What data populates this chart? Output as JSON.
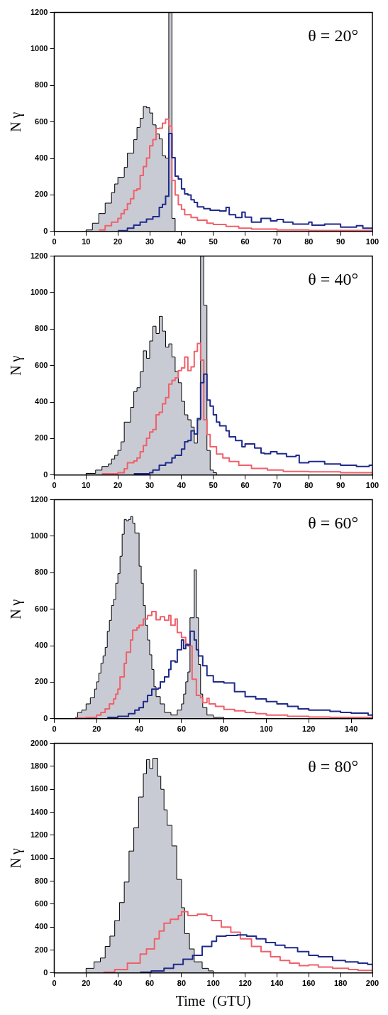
{
  "chart_data": [
    {
      "type": "step",
      "ylabel": "N γ",
      "annotations": [
        "θ = 20°"
      ],
      "xlim": [
        0,
        100
      ],
      "xticks": [
        0,
        10,
        20,
        30,
        40,
        50,
        60,
        70,
        80,
        90,
        100
      ],
      "ylim": [
        0,
        1200
      ],
      "yticks": [
        0,
        200,
        400,
        600,
        800,
        1000,
        1200
      ],
      "series": [
        {
          "type": "area",
          "color": "#c8cbd3",
          "x": [
            0,
            10,
            12,
            14,
            16,
            18,
            19,
            20,
            22,
            23,
            25,
            26,
            27,
            28,
            29,
            30,
            31,
            32,
            33,
            34,
            35,
            36,
            37,
            38,
            100
          ],
          "values": [
            0,
            8,
            45,
            98,
            155,
            213,
            260,
            297,
            351,
            429,
            503,
            570,
            620,
            685,
            678,
            649,
            584,
            534,
            507,
            415,
            402,
            1200,
            71,
            0,
            0
          ]
        },
        {
          "type": "step",
          "color": "#f0606a",
          "x": [
            14,
            16,
            18,
            20,
            21,
            22,
            23,
            24,
            25,
            26,
            27,
            28,
            29,
            30,
            31,
            32,
            33,
            34,
            35,
            36,
            37,
            38,
            39,
            40,
            41,
            43,
            45,
            48,
            50,
            54,
            58,
            62,
            70,
            80,
            100
          ],
          "values": [
            8,
            31,
            51,
            71,
            98,
            119,
            152,
            179,
            224,
            233,
            307,
            355,
            402,
            469,
            503,
            564,
            566,
            593,
            615,
            577,
            280,
            200,
            146,
            121,
            92,
            76,
            62,
            45,
            38,
            27,
            18,
            13,
            8,
            5,
            3
          ]
        },
        {
          "type": "step",
          "color": "#1f2a8a",
          "x": [
            20,
            23,
            25,
            27,
            29,
            31,
            33,
            34,
            35,
            36,
            37,
            38,
            39,
            40,
            41,
            42,
            43,
            44,
            45,
            47,
            49,
            52,
            54,
            55,
            57,
            59,
            60,
            62,
            65,
            68,
            70,
            72,
            75,
            80,
            81,
            85,
            90,
            95,
            97,
            100
          ],
          "values": [
            4,
            18,
            34,
            51,
            67,
            81,
            132,
            148,
            193,
            537,
            404,
            303,
            287,
            233,
            206,
            200,
            173,
            159,
            135,
            125,
            116,
            112,
            132,
            92,
            76,
            105,
            78,
            51,
            71,
            58,
            65,
            51,
            40,
            51,
            34,
            40,
            24,
            31,
            18,
            18
          ]
        }
      ]
    },
    {
      "type": "step",
      "ylabel": "N γ",
      "annotations": [
        "θ = 40°"
      ],
      "xlim": [
        0,
        100
      ],
      "xticks": [
        0,
        10,
        20,
        30,
        40,
        50,
        60,
        70,
        80,
        90,
        100
      ],
      "ylim": [
        0,
        1200
      ],
      "yticks": [
        0,
        200,
        400,
        600,
        800,
        1000,
        1200
      ],
      "series": [
        {
          "type": "area",
          "color": "#c8cbd3",
          "x": [
            0,
            10,
            13,
            15,
            17,
            18,
            19,
            20,
            21,
            22,
            24,
            25,
            26,
            27,
            28,
            29,
            30,
            31,
            32,
            33,
            34,
            35,
            36,
            37,
            38,
            39,
            40,
            41,
            42,
            43,
            44,
            45,
            46,
            47,
            48,
            49,
            50,
            51,
            100
          ],
          "values": [
            0,
            9,
            27,
            47,
            61,
            88,
            108,
            135,
            182,
            290,
            371,
            458,
            479,
            566,
            681,
            640,
            735,
            816,
            776,
            870,
            789,
            701,
            719,
            647,
            566,
            506,
            404,
            330,
            303,
            263,
            175,
            303,
            1200,
            930,
            135,
            27,
            13,
            0,
            0
          ]
        },
        {
          "type": "step",
          "color": "#f0606a",
          "x": [
            15,
            20,
            22,
            23,
            25,
            26,
            27,
            28,
            29,
            30,
            31,
            32,
            33,
            34,
            35,
            36,
            37,
            38,
            39,
            40,
            41,
            42,
            43,
            44,
            45,
            46,
            47,
            48,
            49,
            51,
            53,
            55,
            58,
            62,
            67,
            72,
            80,
            90,
            100
          ],
          "values": [
            7,
            13,
            34,
            67,
            77,
            94,
            128,
            162,
            202,
            236,
            249,
            330,
            344,
            391,
            425,
            499,
            519,
            533,
            573,
            587,
            647,
            573,
            593,
            678,
            721,
            630,
            303,
            222,
            155,
            115,
            94,
            74,
            54,
            36,
            27,
            20,
            18,
            13,
            13
          ]
        },
        {
          "type": "step",
          "color": "#1f2a8a",
          "x": [
            25,
            30,
            31,
            33,
            35,
            37,
            38,
            40,
            41,
            42,
            43,
            44,
            45,
            46,
            47,
            48,
            49,
            50,
            51,
            52,
            54,
            55,
            57,
            59,
            60,
            63,
            65,
            66,
            68,
            70,
            73,
            76,
            77,
            80,
            85,
            90,
            95,
            99,
            100
          ],
          "values": [
            7,
            13,
            27,
            54,
            67,
            94,
            108,
            142,
            182,
            189,
            243,
            225,
            310,
            506,
            553,
            411,
            378,
            330,
            290,
            270,
            243,
            209,
            189,
            155,
            171,
            148,
            121,
            117,
            128,
            117,
            101,
            108,
            67,
            74,
            61,
            54,
            47,
            54,
            54
          ]
        }
      ]
    },
    {
      "type": "step",
      "ylabel": "N γ",
      "annotations": [
        "θ = 60°"
      ],
      "xlim": [
        0,
        150
      ],
      "xticks": [
        0,
        20,
        40,
        60,
        80,
        100,
        120,
        140
      ],
      "ylim": [
        0,
        1200
      ],
      "yticks": [
        0,
        200,
        400,
        600,
        800,
        1000,
        1200
      ],
      "series": [
        {
          "type": "area",
          "color": "#c8cbd3",
          "x": [
            0,
            10,
            11,
            13,
            15,
            17,
            19,
            20,
            21,
            22,
            23,
            24,
            25,
            26,
            27,
            28,
            29,
            30,
            31,
            32,
            33,
            34,
            35,
            36,
            37,
            38,
            40,
            41,
            42,
            43,
            44,
            45,
            46,
            47,
            48,
            50,
            52,
            55,
            58,
            60,
            61,
            62,
            63,
            64,
            65,
            66,
            67,
            68,
            69,
            70,
            72,
            75,
            80,
            150
          ],
          "values": [
            0,
            7,
            34,
            47,
            81,
            115,
            162,
            202,
            249,
            303,
            344,
            391,
            479,
            539,
            620,
            654,
            742,
            795,
            890,
            1011,
            1092,
            1085,
            1092,
            1108,
            1072,
            1018,
            836,
            742,
            620,
            512,
            431,
            350,
            270,
            175,
            121,
            81,
            34,
            20,
            47,
            81,
            135,
            202,
            256,
            553,
            553,
            816,
            553,
            297,
            135,
            61,
            20,
            7,
            0,
            0
          ]
        },
        {
          "type": "step",
          "color": "#f0606a",
          "x": [
            10,
            15,
            20,
            22,
            24,
            26,
            28,
            29,
            30,
            31,
            33,
            34,
            36,
            37,
            39,
            40,
            42,
            44,
            46,
            48,
            50,
            52,
            54,
            55,
            57,
            58,
            60,
            62,
            63,
            65,
            67,
            69,
            70,
            72,
            73,
            76,
            80,
            85,
            90,
            95,
            100,
            110,
            120,
            130,
            150
          ],
          "values": [
            3,
            7,
            20,
            34,
            54,
            81,
            108,
            135,
            162,
            229,
            303,
            364,
            431,
            485,
            499,
            512,
            546,
            566,
            587,
            542,
            559,
            539,
            566,
            512,
            546,
            472,
            445,
            411,
            398,
            216,
            128,
            115,
            88,
            111,
            81,
            67,
            51,
            43,
            34,
            27,
            20,
            13,
            9,
            7,
            7
          ]
        },
        {
          "type": "step",
          "color": "#1f2a8a",
          "x": [
            25,
            30,
            35,
            38,
            40,
            42,
            44,
            46,
            49,
            50,
            52,
            54,
            55,
            57,
            58,
            60,
            61,
            62,
            64,
            66,
            67,
            68,
            70,
            72,
            75,
            80,
            85,
            90,
            95,
            100,
            105,
            110,
            115,
            120,
            125,
            130,
            135,
            140,
            145,
            148,
            150
          ],
          "values": [
            7,
            13,
            27,
            47,
            61,
            94,
            128,
            162,
            168,
            202,
            229,
            270,
            317,
            310,
            378,
            431,
            384,
            404,
            479,
            431,
            378,
            344,
            290,
            236,
            202,
            196,
            148,
            121,
            108,
            94,
            81,
            67,
            54,
            47,
            47,
            40,
            34,
            30,
            30,
            20,
            20
          ]
        }
      ]
    },
    {
      "type": "step",
      "xlabel": "Time  (GTU)",
      "ylabel": "N γ",
      "annotations": [
        "θ = 80°"
      ],
      "xlim": [
        0,
        200
      ],
      "xticks": [
        0,
        20,
        40,
        60,
        80,
        100,
        120,
        140,
        160,
        180,
        200
      ],
      "ylim": [
        0,
        2000
      ],
      "yticks": [
        0,
        200,
        400,
        600,
        800,
        1000,
        1200,
        1400,
        1600,
        1800,
        2000
      ],
      "series": [
        {
          "type": "area",
          "color": "#c8cbd3",
          "x": [
            0,
            20,
            25,
            29,
            32,
            35,
            38,
            41,
            44,
            47,
            50,
            53,
            56,
            58,
            60,
            62,
            65,
            67,
            69,
            71,
            74,
            77,
            80,
            82,
            85,
            88,
            93,
            97,
            100,
            200
          ],
          "values": [
            0,
            40,
            97,
            130,
            231,
            321,
            456,
            613,
            792,
            1062,
            1264,
            1533,
            1735,
            1859,
            1781,
            1870,
            1713,
            1600,
            1421,
            1286,
            1107,
            815,
            568,
            343,
            209,
            97,
            40,
            18,
            0,
            0
          ]
        },
        {
          "type": "step",
          "color": "#f0606a",
          "x": [
            31,
            38,
            46,
            54,
            58,
            63,
            66,
            69,
            73,
            78,
            80,
            84,
            90,
            96,
            99,
            105,
            111,
            117,
            124,
            130,
            136,
            142,
            148,
            154,
            160,
            166,
            175,
            185,
            191,
            200
          ],
          "values": [
            7,
            29,
            85,
            164,
            209,
            298,
            366,
            433,
            467,
            500,
            534,
            500,
            512,
            500,
            456,
            400,
            355,
            298,
            231,
            186,
            141,
            108,
            85,
            63,
            70,
            52,
            40,
            29,
            22,
            22
          ]
        },
        {
          "type": "step",
          "color": "#1f2a8a",
          "x": [
            54,
            61,
            69,
            75,
            81,
            87,
            93,
            99,
            102,
            108,
            115,
            121,
            127,
            133,
            139,
            145,
            153,
            160,
            166,
            175,
            183,
            191,
            197,
            200
          ],
          "values": [
            7,
            18,
            40,
            74,
            119,
            153,
            231,
            276,
            321,
            326,
            332,
            321,
            298,
            265,
            242,
            220,
            186,
            153,
            141,
            108,
            97,
            85,
            74,
            74
          ]
        }
      ]
    }
  ]
}
